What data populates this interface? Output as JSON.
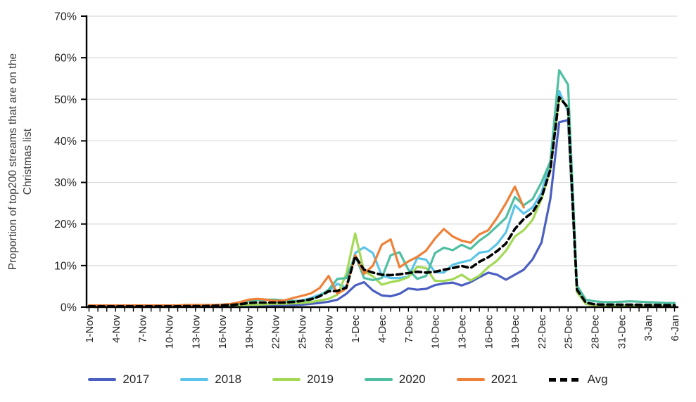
{
  "y_axis": {
    "title_line1": "Proportion of top200 streams that are on the",
    "title_line2": "Christmas list"
  },
  "colors": {
    "background": "#ffffff",
    "grid": "#d9d9d9",
    "axis": "#000000",
    "tick_text": "#262626"
  },
  "chart_data": {
    "type": "line",
    "title": "",
    "ylabel": "Proportion of top200 streams that are on the Christmas list",
    "xlabel": "",
    "ylim": [
      0,
      70
    ],
    "y_ticks": [
      "0%",
      "10%",
      "20%",
      "30%",
      "40%",
      "50%",
      "60%",
      "70%"
    ],
    "grid": "horizontal",
    "legend_position": "bottom",
    "x_tick_every_days": 3,
    "x_tick_labels": [
      "1-Nov",
      "4-Nov",
      "7-Nov",
      "10-Nov",
      "13-Nov",
      "16-Nov",
      "19-Nov",
      "22-Nov",
      "25-Nov",
      "28-Nov",
      "1-Dec",
      "4-Dec",
      "7-Dec",
      "10-Dec",
      "13-Dec",
      "16-Dec",
      "19-Dec",
      "22-Dec",
      "25-Dec",
      "28-Dec",
      "31-Dec",
      "3-Jan",
      "6-Jan"
    ],
    "dates": [
      "1-Nov",
      "2-Nov",
      "3-Nov",
      "4-Nov",
      "5-Nov",
      "6-Nov",
      "7-Nov",
      "8-Nov",
      "9-Nov",
      "10-Nov",
      "11-Nov",
      "12-Nov",
      "13-Nov",
      "14-Nov",
      "15-Nov",
      "16-Nov",
      "17-Nov",
      "18-Nov",
      "19-Nov",
      "20-Nov",
      "21-Nov",
      "22-Nov",
      "23-Nov",
      "24-Nov",
      "25-Nov",
      "26-Nov",
      "27-Nov",
      "28-Nov",
      "29-Nov",
      "30-Nov",
      "1-Dec",
      "2-Dec",
      "3-Dec",
      "4-Dec",
      "5-Dec",
      "6-Dec",
      "7-Dec",
      "8-Dec",
      "9-Dec",
      "10-Dec",
      "11-Dec",
      "12-Dec",
      "13-Dec",
      "14-Dec",
      "15-Dec",
      "16-Dec",
      "17-Dec",
      "18-Dec",
      "19-Dec",
      "20-Dec",
      "21-Dec",
      "22-Dec",
      "23-Dec",
      "24-Dec",
      "25-Dec",
      "26-Dec",
      "27-Dec",
      "28-Dec",
      "29-Dec",
      "30-Dec",
      "31-Dec",
      "1-Jan",
      "2-Jan",
      "3-Jan",
      "4-Jan",
      "5-Jan",
      "6-Jan"
    ],
    "series": [
      {
        "name": "2017",
        "color": "#4a5fc1",
        "dash": false,
        "values": [
          0.1,
          0.1,
          0.1,
          0.1,
          0.1,
          0.1,
          0.1,
          0.1,
          0.1,
          0.1,
          0.1,
          0.2,
          0.2,
          0.2,
          0.2,
          0.2,
          0.3,
          0.3,
          0.3,
          0.4,
          0.4,
          0.4,
          0.5,
          0.5,
          0.6,
          0.8,
          1.0,
          1.3,
          1.8,
          3.2,
          5.2,
          6.0,
          4.0,
          2.8,
          2.6,
          3.2,
          4.5,
          4.2,
          4.4,
          5.3,
          5.7,
          5.9,
          5.2,
          6.0,
          7.2,
          8.3,
          7.8,
          6.6,
          7.8,
          9.0,
          11.5,
          15.5,
          26.0,
          44.5,
          45.0,
          3.8,
          0.8,
          0.4,
          0.3,
          0.3,
          0.3,
          0.3,
          0.25,
          0.2,
          0.2,
          0.2,
          0.2
        ]
      },
      {
        "name": "2018",
        "color": "#5bc4ea",
        "dash": false,
        "values": [
          0.1,
          0.1,
          0.1,
          0.1,
          0.1,
          0.1,
          0.1,
          0.1,
          0.1,
          0.1,
          0.2,
          0.2,
          0.2,
          0.2,
          0.3,
          0.3,
          0.4,
          0.4,
          0.5,
          0.6,
          0.8,
          1.0,
          1.1,
          1.2,
          1.6,
          2.2,
          3.0,
          3.8,
          5.6,
          4.7,
          13.0,
          14.4,
          13.0,
          7.6,
          7.0,
          7.0,
          7.3,
          11.8,
          11.4,
          8.4,
          8.3,
          10.2,
          10.8,
          11.3,
          13.1,
          13.4,
          15.2,
          18.0,
          24.5,
          22.5,
          24.0,
          27.5,
          35.0,
          52.0,
          47.0,
          4.2,
          1.0,
          0.5,
          0.4,
          0.4,
          0.4,
          0.4,
          0.35,
          0.3,
          0.3,
          0.3,
          0.3
        ]
      },
      {
        "name": "2019",
        "color": "#a3d955",
        "dash": false,
        "values": [
          0.1,
          0.1,
          0.1,
          0.1,
          0.1,
          0.1,
          0.1,
          0.1,
          0.1,
          0.1,
          0.2,
          0.2,
          0.2,
          0.2,
          0.2,
          0.3,
          0.4,
          0.5,
          0.6,
          0.6,
          0.7,
          0.8,
          0.8,
          0.9,
          1.0,
          1.2,
          1.6,
          2.0,
          3.0,
          8.0,
          17.7,
          8.6,
          7.4,
          5.4,
          6.0,
          6.4,
          7.2,
          9.7,
          9.4,
          6.3,
          6.3,
          6.7,
          7.8,
          6.4,
          7.6,
          9.6,
          11.2,
          13.6,
          17.0,
          18.5,
          21.0,
          26.0,
          33.0,
          50.5,
          48.0,
          3.6,
          0.8,
          0.4,
          0.3,
          0.3,
          0.3,
          0.3,
          0.3,
          0.25,
          0.25,
          0.25,
          0.25
        ]
      },
      {
        "name": "2020",
        "color": "#4fbfa2",
        "dash": false,
        "values": [
          0.1,
          0.1,
          0.1,
          0.1,
          0.15,
          0.15,
          0.15,
          0.2,
          0.2,
          0.2,
          0.2,
          0.25,
          0.3,
          0.3,
          0.35,
          0.4,
          0.6,
          1.0,
          1.4,
          1.7,
          1.8,
          1.8,
          1.6,
          1.5,
          1.5,
          1.8,
          2.6,
          4.2,
          6.8,
          7.0,
          12.5,
          7.0,
          6.5,
          7.0,
          12.5,
          13.2,
          9.0,
          6.8,
          7.5,
          13.0,
          14.3,
          13.7,
          15.0,
          14.0,
          16.0,
          17.5,
          19.5,
          21.5,
          26.5,
          24.5,
          26.0,
          30.0,
          35.0,
          57.0,
          53.5,
          5.2,
          1.8,
          1.4,
          1.2,
          1.2,
          1.3,
          1.4,
          1.3,
          1.2,
          1.1,
          1.0,
          1.0
        ]
      },
      {
        "name": "2021",
        "color": "#ef8038",
        "dash": false,
        "values": [
          0.4,
          0.4,
          0.4,
          0.4,
          0.4,
          0.4,
          0.4,
          0.4,
          0.4,
          0.4,
          0.4,
          0.5,
          0.5,
          0.5,
          0.5,
          0.6,
          0.8,
          1.2,
          1.8,
          2.0,
          1.8,
          1.5,
          1.6,
          2.2,
          2.7,
          3.3,
          4.6,
          7.5,
          3.2,
          4.5,
          12.5,
          8.0,
          10.0,
          15.0,
          16.3,
          9.6,
          11.0,
          12.1,
          13.6,
          16.5,
          18.8,
          17.0,
          16.0,
          15.5,
          17.5,
          18.5,
          21.5,
          25.0,
          29.0,
          24.0,
          null,
          null,
          null,
          null,
          null,
          null,
          null,
          null,
          null,
          null,
          null,
          null,
          null,
          null,
          null,
          null,
          null
        ]
      },
      {
        "name": "Avg",
        "color": "#000000",
        "dash": true,
        "values": [
          0.2,
          0.2,
          0.2,
          0.2,
          0.2,
          0.2,
          0.2,
          0.2,
          0.2,
          0.2,
          0.2,
          0.25,
          0.25,
          0.25,
          0.3,
          0.4,
          0.5,
          0.7,
          1.0,
          1.1,
          1.1,
          1.1,
          1.1,
          1.25,
          1.5,
          1.9,
          2.6,
          3.8,
          3.9,
          4.7,
          12.2,
          9.0,
          8.3,
          7.8,
          7.7,
          7.9,
          8.2,
          8.5,
          8.3,
          8.5,
          9.0,
          9.4,
          9.9,
          9.4,
          10.9,
          12.0,
          13.5,
          15.3,
          18.8,
          21.2,
          22.8,
          26.3,
          33.0,
          50.5,
          48.0,
          4.2,
          1.1,
          0.7,
          0.6,
          0.6,
          0.6,
          0.6,
          0.55,
          0.5,
          0.5,
          0.45,
          0.45
        ]
      }
    ]
  }
}
